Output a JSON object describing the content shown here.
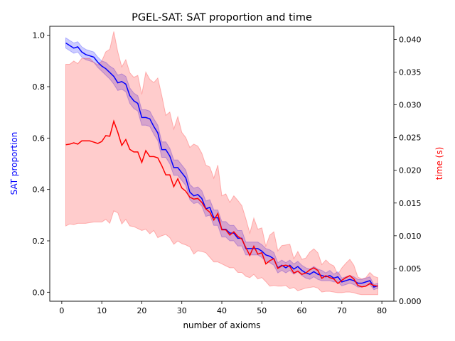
{
  "chart_data": {
    "type": "line",
    "title": "PGEL-SAT: SAT proportion and time",
    "xlabel": "number of axioms",
    "ylabel_left": "SAT proportion",
    "ylabel_right": "time (s)",
    "xlim": [
      -3,
      83
    ],
    "ylim_left": [
      -0.035,
      1.035
    ],
    "ylim_right": [
      0.0,
      0.042
    ],
    "x_ticks": [
      0,
      10,
      20,
      30,
      40,
      50,
      60,
      70,
      80
    ],
    "y_left_ticks": [
      "0.0",
      "0.2",
      "0.4",
      "0.6",
      "0.8",
      "1.0"
    ],
    "y_right_ticks": [
      "0.000",
      "0.005",
      "0.010",
      "0.015",
      "0.020",
      "0.025",
      "0.030",
      "0.035",
      "0.040"
    ],
    "grid": false,
    "legend": "none",
    "colors": {
      "sat": "#0000ff",
      "sat_band": "#0000ff",
      "time": "#ff0000",
      "time_band": "#ff0000",
      "left_axis_label": "#0000ff",
      "right_axis_label": "#ff0000"
    },
    "x": [
      1,
      2,
      3,
      4,
      5,
      6,
      7,
      8,
      9,
      10,
      11,
      12,
      13,
      14,
      15,
      16,
      17,
      18,
      19,
      20,
      21,
      22,
      23,
      24,
      25,
      26,
      27,
      28,
      29,
      30,
      31,
      32,
      33,
      34,
      35,
      36,
      37,
      38,
      39,
      40,
      41,
      42,
      43,
      44,
      45,
      46,
      47,
      48,
      49,
      50,
      51,
      52,
      53,
      54,
      55,
      56,
      57,
      58,
      59,
      60,
      61,
      62,
      63,
      64,
      65,
      66,
      67,
      68,
      69,
      70,
      71,
      72,
      73,
      74,
      75,
      76,
      77,
      78,
      79
    ],
    "sat_mean": [
      0.97,
      0.96,
      0.95,
      0.955,
      0.935,
      0.925,
      0.92,
      0.915,
      0.895,
      0.88,
      0.87,
      0.855,
      0.84,
      0.815,
      0.82,
      0.81,
      0.765,
      0.745,
      0.735,
      0.68,
      0.68,
      0.675,
      0.645,
      0.62,
      0.555,
      0.555,
      0.53,
      0.485,
      0.485,
      0.465,
      0.445,
      0.39,
      0.375,
      0.38,
      0.365,
      0.325,
      0.33,
      0.29,
      0.29,
      0.245,
      0.245,
      0.23,
      0.23,
      0.21,
      0.21,
      0.17,
      0.17,
      0.17,
      0.17,
      0.16,
      0.145,
      0.14,
      0.13,
      0.095,
      0.105,
      0.095,
      0.105,
      0.09,
      0.1,
      0.085,
      0.075,
      0.07,
      0.08,
      0.07,
      0.065,
      0.06,
      0.065,
      0.055,
      0.06,
      0.04,
      0.045,
      0.05,
      0.045,
      0.035,
      0.035,
      0.04,
      0.045,
      0.02,
      0.025
    ],
    "sat_lower": [
      0.95,
      0.94,
      0.93,
      0.935,
      0.915,
      0.905,
      0.9,
      0.895,
      0.875,
      0.86,
      0.845,
      0.83,
      0.81,
      0.785,
      0.79,
      0.78,
      0.735,
      0.715,
      0.705,
      0.65,
      0.65,
      0.645,
      0.615,
      0.59,
      0.525,
      0.525,
      0.5,
      0.455,
      0.455,
      0.435,
      0.415,
      0.36,
      0.345,
      0.35,
      0.335,
      0.295,
      0.3,
      0.26,
      0.26,
      0.215,
      0.215,
      0.2,
      0.2,
      0.18,
      0.18,
      0.145,
      0.145,
      0.145,
      0.145,
      0.135,
      0.12,
      0.115,
      0.105,
      0.075,
      0.085,
      0.075,
      0.085,
      0.07,
      0.08,
      0.065,
      0.055,
      0.05,
      0.06,
      0.05,
      0.045,
      0.045,
      0.045,
      0.04,
      0.04,
      0.025,
      0.03,
      0.035,
      0.03,
      0.02,
      0.02,
      0.025,
      0.03,
      0.01,
      0.015
    ],
    "sat_upper": [
      0.99,
      0.98,
      0.97,
      0.975,
      0.955,
      0.945,
      0.94,
      0.935,
      0.915,
      0.9,
      0.895,
      0.88,
      0.87,
      0.845,
      0.85,
      0.84,
      0.795,
      0.775,
      0.765,
      0.71,
      0.71,
      0.705,
      0.675,
      0.65,
      0.585,
      0.585,
      0.56,
      0.515,
      0.515,
      0.495,
      0.475,
      0.42,
      0.405,
      0.41,
      0.395,
      0.355,
      0.36,
      0.32,
      0.32,
      0.275,
      0.275,
      0.26,
      0.26,
      0.24,
      0.24,
      0.195,
      0.195,
      0.195,
      0.195,
      0.185,
      0.17,
      0.165,
      0.155,
      0.115,
      0.125,
      0.115,
      0.125,
      0.11,
      0.12,
      0.105,
      0.095,
      0.09,
      0.1,
      0.09,
      0.085,
      0.075,
      0.085,
      0.07,
      0.08,
      0.055,
      0.06,
      0.065,
      0.06,
      0.05,
      0.05,
      0.055,
      0.06,
      0.03,
      0.035
    ],
    "time_mean": [
      0.0239,
      0.024,
      0.0242,
      0.024,
      0.0245,
      0.0245,
      0.0245,
      0.0243,
      0.0241,
      0.0244,
      0.0253,
      0.0252,
      0.0275,
      0.0258,
      0.0238,
      0.0247,
      0.0232,
      0.0228,
      0.0228,
      0.0212,
      0.023,
      0.0221,
      0.0221,
      0.0219,
      0.0207,
      0.0193,
      0.0193,
      0.0175,
      0.0187,
      0.0173,
      0.0168,
      0.0159,
      0.0156,
      0.0157,
      0.0151,
      0.0141,
      0.0136,
      0.0124,
      0.0134,
      0.0109,
      0.0109,
      0.0101,
      0.0106,
      0.0099,
      0.0095,
      0.0082,
      0.007,
      0.0084,
      0.0072,
      0.0074,
      0.0057,
      0.0062,
      0.0065,
      0.005,
      0.0054,
      0.0055,
      0.0053,
      0.0043,
      0.0046,
      0.0041,
      0.0043,
      0.0048,
      0.0051,
      0.0047,
      0.0035,
      0.0039,
      0.0036,
      0.0034,
      0.0027,
      0.0032,
      0.0036,
      0.0039,
      0.0034,
      0.0024,
      0.0022,
      0.0023,
      0.0027,
      0.0024,
      0.0023
    ],
    "time_lower": [
      0.0115,
      0.0118,
      0.0117,
      0.0119,
      0.0119,
      0.0119,
      0.012,
      0.0121,
      0.0121,
      0.0121,
      0.0125,
      0.0119,
      0.0138,
      0.0135,
      0.0118,
      0.0125,
      0.0115,
      0.0114,
      0.0111,
      0.0108,
      0.011,
      0.0103,
      0.0108,
      0.0097,
      0.01,
      0.0102,
      0.0097,
      0.0087,
      0.0092,
      0.0088,
      0.0086,
      0.0083,
      0.0072,
      0.0077,
      0.0076,
      0.0074,
      0.0067,
      0.006,
      0.006,
      0.0057,
      0.0054,
      0.0051,
      0.0051,
      0.0044,
      0.0044,
      0.0038,
      0.0036,
      0.0041,
      0.0034,
      0.0036,
      0.003,
      0.0023,
      0.0024,
      0.0023,
      0.0023,
      0.0024,
      0.0019,
      0.0021,
      0.0016,
      0.0018,
      0.002,
      0.0021,
      0.0022,
      0.002,
      0.0014,
      0.0015,
      0.0015,
      0.0014,
      0.0013,
      0.0013,
      0.0014,
      0.0014,
      0.0013,
      0.0011,
      0.001,
      0.001,
      0.001,
      0.001,
      0.001
    ],
    "time_upper": [
      0.0362,
      0.0362,
      0.0367,
      0.0363,
      0.0371,
      0.0371,
      0.0371,
      0.0365,
      0.0361,
      0.0367,
      0.0381,
      0.0385,
      0.0412,
      0.0381,
      0.0358,
      0.0369,
      0.0349,
      0.0342,
      0.0345,
      0.0316,
      0.035,
      0.0339,
      0.0334,
      0.0341,
      0.0314,
      0.0284,
      0.0289,
      0.0263,
      0.0282,
      0.0258,
      0.025,
      0.0235,
      0.024,
      0.0237,
      0.0226,
      0.0208,
      0.0205,
      0.0188,
      0.0208,
      0.0161,
      0.0164,
      0.0151,
      0.0161,
      0.0154,
      0.0146,
      0.0126,
      0.0104,
      0.0127,
      0.011,
      0.0112,
      0.0084,
      0.0101,
      0.0106,
      0.0077,
      0.0085,
      0.0086,
      0.0087,
      0.0065,
      0.0076,
      0.0064,
      0.0066,
      0.0075,
      0.008,
      0.0074,
      0.0056,
      0.0063,
      0.0057,
      0.0054,
      0.0041,
      0.0051,
      0.0058,
      0.0064,
      0.0055,
      0.0037,
      0.0034,
      0.0036,
      0.0044,
      0.0038,
      0.0036
    ]
  }
}
